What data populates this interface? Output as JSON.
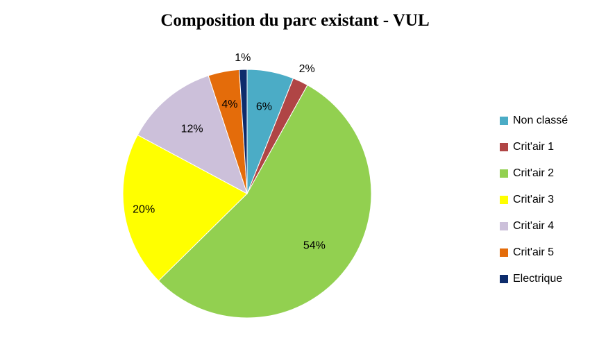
{
  "chart_data": {
    "type": "pie",
    "title": "Composition du parc existant - VUL",
    "legend_position": "right",
    "start_angle_deg": 0,
    "direction": "clockwise",
    "slices": [
      {
        "label": "Non classé",
        "value": 6,
        "display": "6%",
        "color": "#4bacc6"
      },
      {
        "label": "Crit'air 1",
        "value": 2,
        "display": "2%",
        "color": "#b04545"
      },
      {
        "label": "Crit'air 2",
        "value": 54,
        "display": "54%",
        "color": "#92d050"
      },
      {
        "label": "Crit'air 3",
        "value": 20,
        "display": "20%",
        "color": "#ffff00"
      },
      {
        "label": "Crit'air 4",
        "value": 12,
        "display": "12%",
        "color": "#ccc0da"
      },
      {
        "label": "Crit'air 5",
        "value": 4,
        "display": "4%",
        "color": "#e46c0a"
      },
      {
        "label": "Electrique",
        "value": 1,
        "display": "1%",
        "color": "#0d2c6c"
      }
    ]
  }
}
